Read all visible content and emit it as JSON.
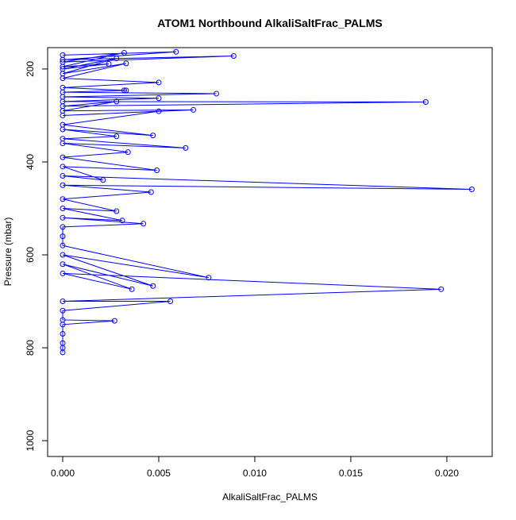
{
  "chart_data": {
    "type": "line",
    "title": "ATOM1 Northbound AlkaliSaltFrac_PALMS",
    "x_label": "AlkaliSaltFrac_PALMS",
    "y_label": "Pressure (mbar)",
    "x": [
      0,
      0.0059,
      0,
      0.0089,
      0,
      0.0032,
      0,
      0.0024,
      0,
      0.0028,
      0,
      0.0033,
      0,
      0.005,
      0,
      0.0033,
      0.0032,
      0,
      0.008,
      0,
      0.005,
      0,
      0.0189,
      0,
      0.0028,
      0,
      0.0068,
      0,
      0.005,
      0,
      0.0047,
      0,
      0.0028,
      0,
      0.0064,
      0,
      0.0034,
      0,
      0.0049,
      0,
      0.0021,
      0,
      0.0213,
      0,
      0.0046,
      0,
      0.0028,
      0,
      0.0031,
      0,
      0.0042,
      0,
      0,
      0,
      0.0076,
      0,
      0.0047,
      0,
      0.0036,
      0,
      0.0197,
      0,
      0.0056,
      0,
      0,
      0.0027,
      0,
      0,
      0,
      0,
      0
    ],
    "series": [
      {
        "name": "AlkaliSaltFrac_PALMS",
        "color": "#0000ff",
        "values": [
          170,
          163,
          180,
          172,
          185,
          165,
          195,
          189,
          200,
          177,
          210,
          188,
          220,
          229,
          240,
          246,
          246,
          250,
          253,
          260,
          263,
          270,
          271,
          280,
          270,
          290,
          288,
          300,
          291,
          320,
          343,
          330,
          345,
          350,
          370,
          360,
          379,
          390,
          418,
          410,
          439,
          430,
          459,
          450,
          465,
          480,
          506,
          500,
          526,
          520,
          533,
          540,
          560,
          580,
          649,
          600,
          667,
          620,
          674,
          640,
          674,
          700,
          700,
          720,
          740,
          742,
          750,
          770,
          790,
          800,
          810
        ]
      }
    ],
    "xlim": [
      -0.000785,
      0.02236
    ],
    "ylim": [
      1034,
      154
    ],
    "xticks": [
      {
        "value": 0,
        "label": "0.000"
      },
      {
        "value": 0.005,
        "label": "0.005"
      },
      {
        "value": 0.01,
        "label": "0.010"
      },
      {
        "value": 0.015,
        "label": "0.015"
      },
      {
        "value": 0.02,
        "label": "0.020"
      }
    ],
    "yticks": [
      200,
      400,
      600,
      800,
      1000
    ]
  }
}
